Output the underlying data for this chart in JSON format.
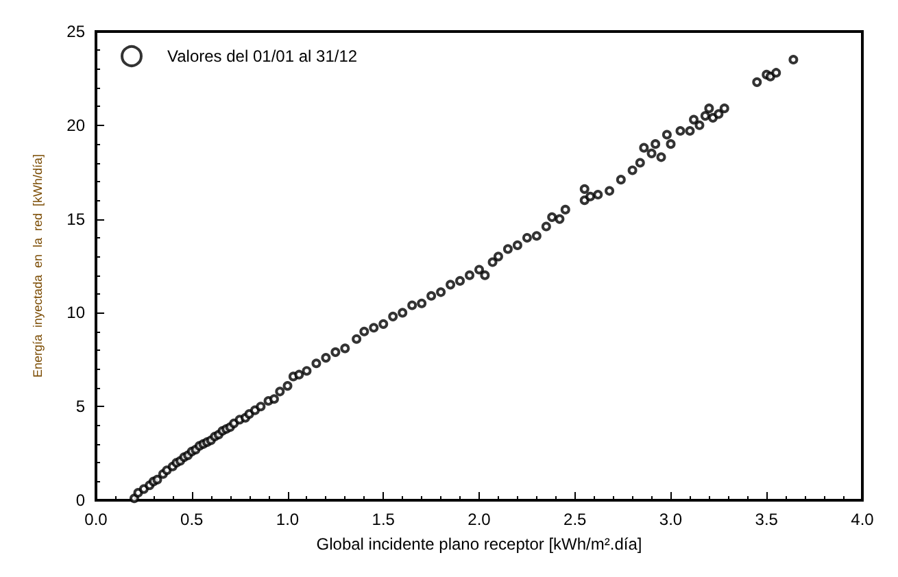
{
  "chart_data": {
    "type": "scatter",
    "xlabel": "Global incidente plano receptor [kWh/m².día]",
    "ylabel": "Energía  inyectada  en  la  red  [kWh/día]",
    "xlim": [
      0,
      4
    ],
    "xticks": [
      {
        "value": 0,
        "label": "0.0"
      },
      {
        "value": 0.5,
        "label": "0.5"
      },
      {
        "value": 1,
        "label": "1.0"
      },
      {
        "value": 1.5,
        "label": "1.5"
      },
      {
        "value": 2,
        "label": "2.0"
      },
      {
        "value": 2.5,
        "label": "2.5"
      },
      {
        "value": 3,
        "label": "3.0"
      },
      {
        "value": 3.5,
        "label": "3.5"
      },
      {
        "value": 4,
        "label": "4.0"
      }
    ],
    "ylim": [
      0,
      25
    ],
    "yticks": [
      0,
      5,
      10,
      15,
      20,
      25
    ],
    "legend": "top left",
    "marker": "circle",
    "grid": false,
    "x": [
      0.2,
      0.22,
      0.25,
      0.28,
      0.3,
      0.32,
      0.35,
      0.37,
      0.4,
      0.42,
      0.44,
      0.46,
      0.48,
      0.5,
      0.52,
      0.54,
      0.56,
      0.58,
      0.6,
      0.62,
      0.64,
      0.66,
      0.68,
      0.7,
      0.72,
      0.75,
      0.78,
      0.8,
      0.83,
      0.86,
      0.9,
      0.93,
      0.96,
      1.0,
      1.03,
      1.06,
      1.1,
      1.15,
      1.2,
      1.25,
      1.3,
      1.36,
      1.4,
      1.45,
      1.5,
      1.55,
      1.6,
      1.65,
      1.7,
      1.75,
      1.8,
      1.85,
      1.9,
      1.95,
      2.0,
      2.03,
      2.07,
      2.1,
      2.15,
      2.2,
      2.25,
      2.3,
      2.35,
      2.38,
      2.42,
      2.45,
      2.55,
      2.55,
      2.58,
      2.62,
      2.68,
      2.74,
      2.8,
      2.84,
      2.86,
      2.9,
      2.92,
      2.95,
      2.98,
      3.0,
      3.05,
      3.1,
      3.12,
      3.15,
      3.18,
      3.2,
      3.22,
      3.25,
      3.28,
      3.45,
      3.5,
      3.52,
      3.55,
      3.64
    ],
    "series": [
      {
        "name": "Valores del 01/01 al 31/12",
        "color": "#000000",
        "values": [
          0.1,
          0.4,
          0.6,
          0.8,
          1.0,
          1.1,
          1.4,
          1.6,
          1.8,
          2.0,
          2.1,
          2.3,
          2.4,
          2.6,
          2.7,
          2.9,
          3.0,
          3.1,
          3.2,
          3.4,
          3.5,
          3.7,
          3.8,
          3.9,
          4.1,
          4.3,
          4.4,
          4.6,
          4.8,
          5.0,
          5.3,
          5.4,
          5.8,
          6.1,
          6.6,
          6.7,
          6.9,
          7.3,
          7.6,
          7.9,
          8.1,
          8.6,
          9.0,
          9.2,
          9.4,
          9.8,
          10.0,
          10.4,
          10.5,
          10.9,
          11.1,
          11.5,
          11.7,
          12.0,
          12.3,
          12.0,
          12.7,
          13.0,
          13.4,
          13.6,
          14.0,
          14.1,
          14.6,
          15.1,
          15.0,
          15.5,
          16.6,
          16.0,
          16.2,
          16.3,
          16.5,
          17.1,
          17.6,
          18.0,
          18.8,
          18.5,
          19.0,
          18.3,
          19.5,
          19.0,
          19.7,
          19.7,
          20.3,
          20.0,
          20.5,
          20.9,
          20.4,
          20.6,
          20.9,
          22.3,
          22.7,
          22.6,
          22.8,
          23.5
        ]
      }
    ]
  }
}
